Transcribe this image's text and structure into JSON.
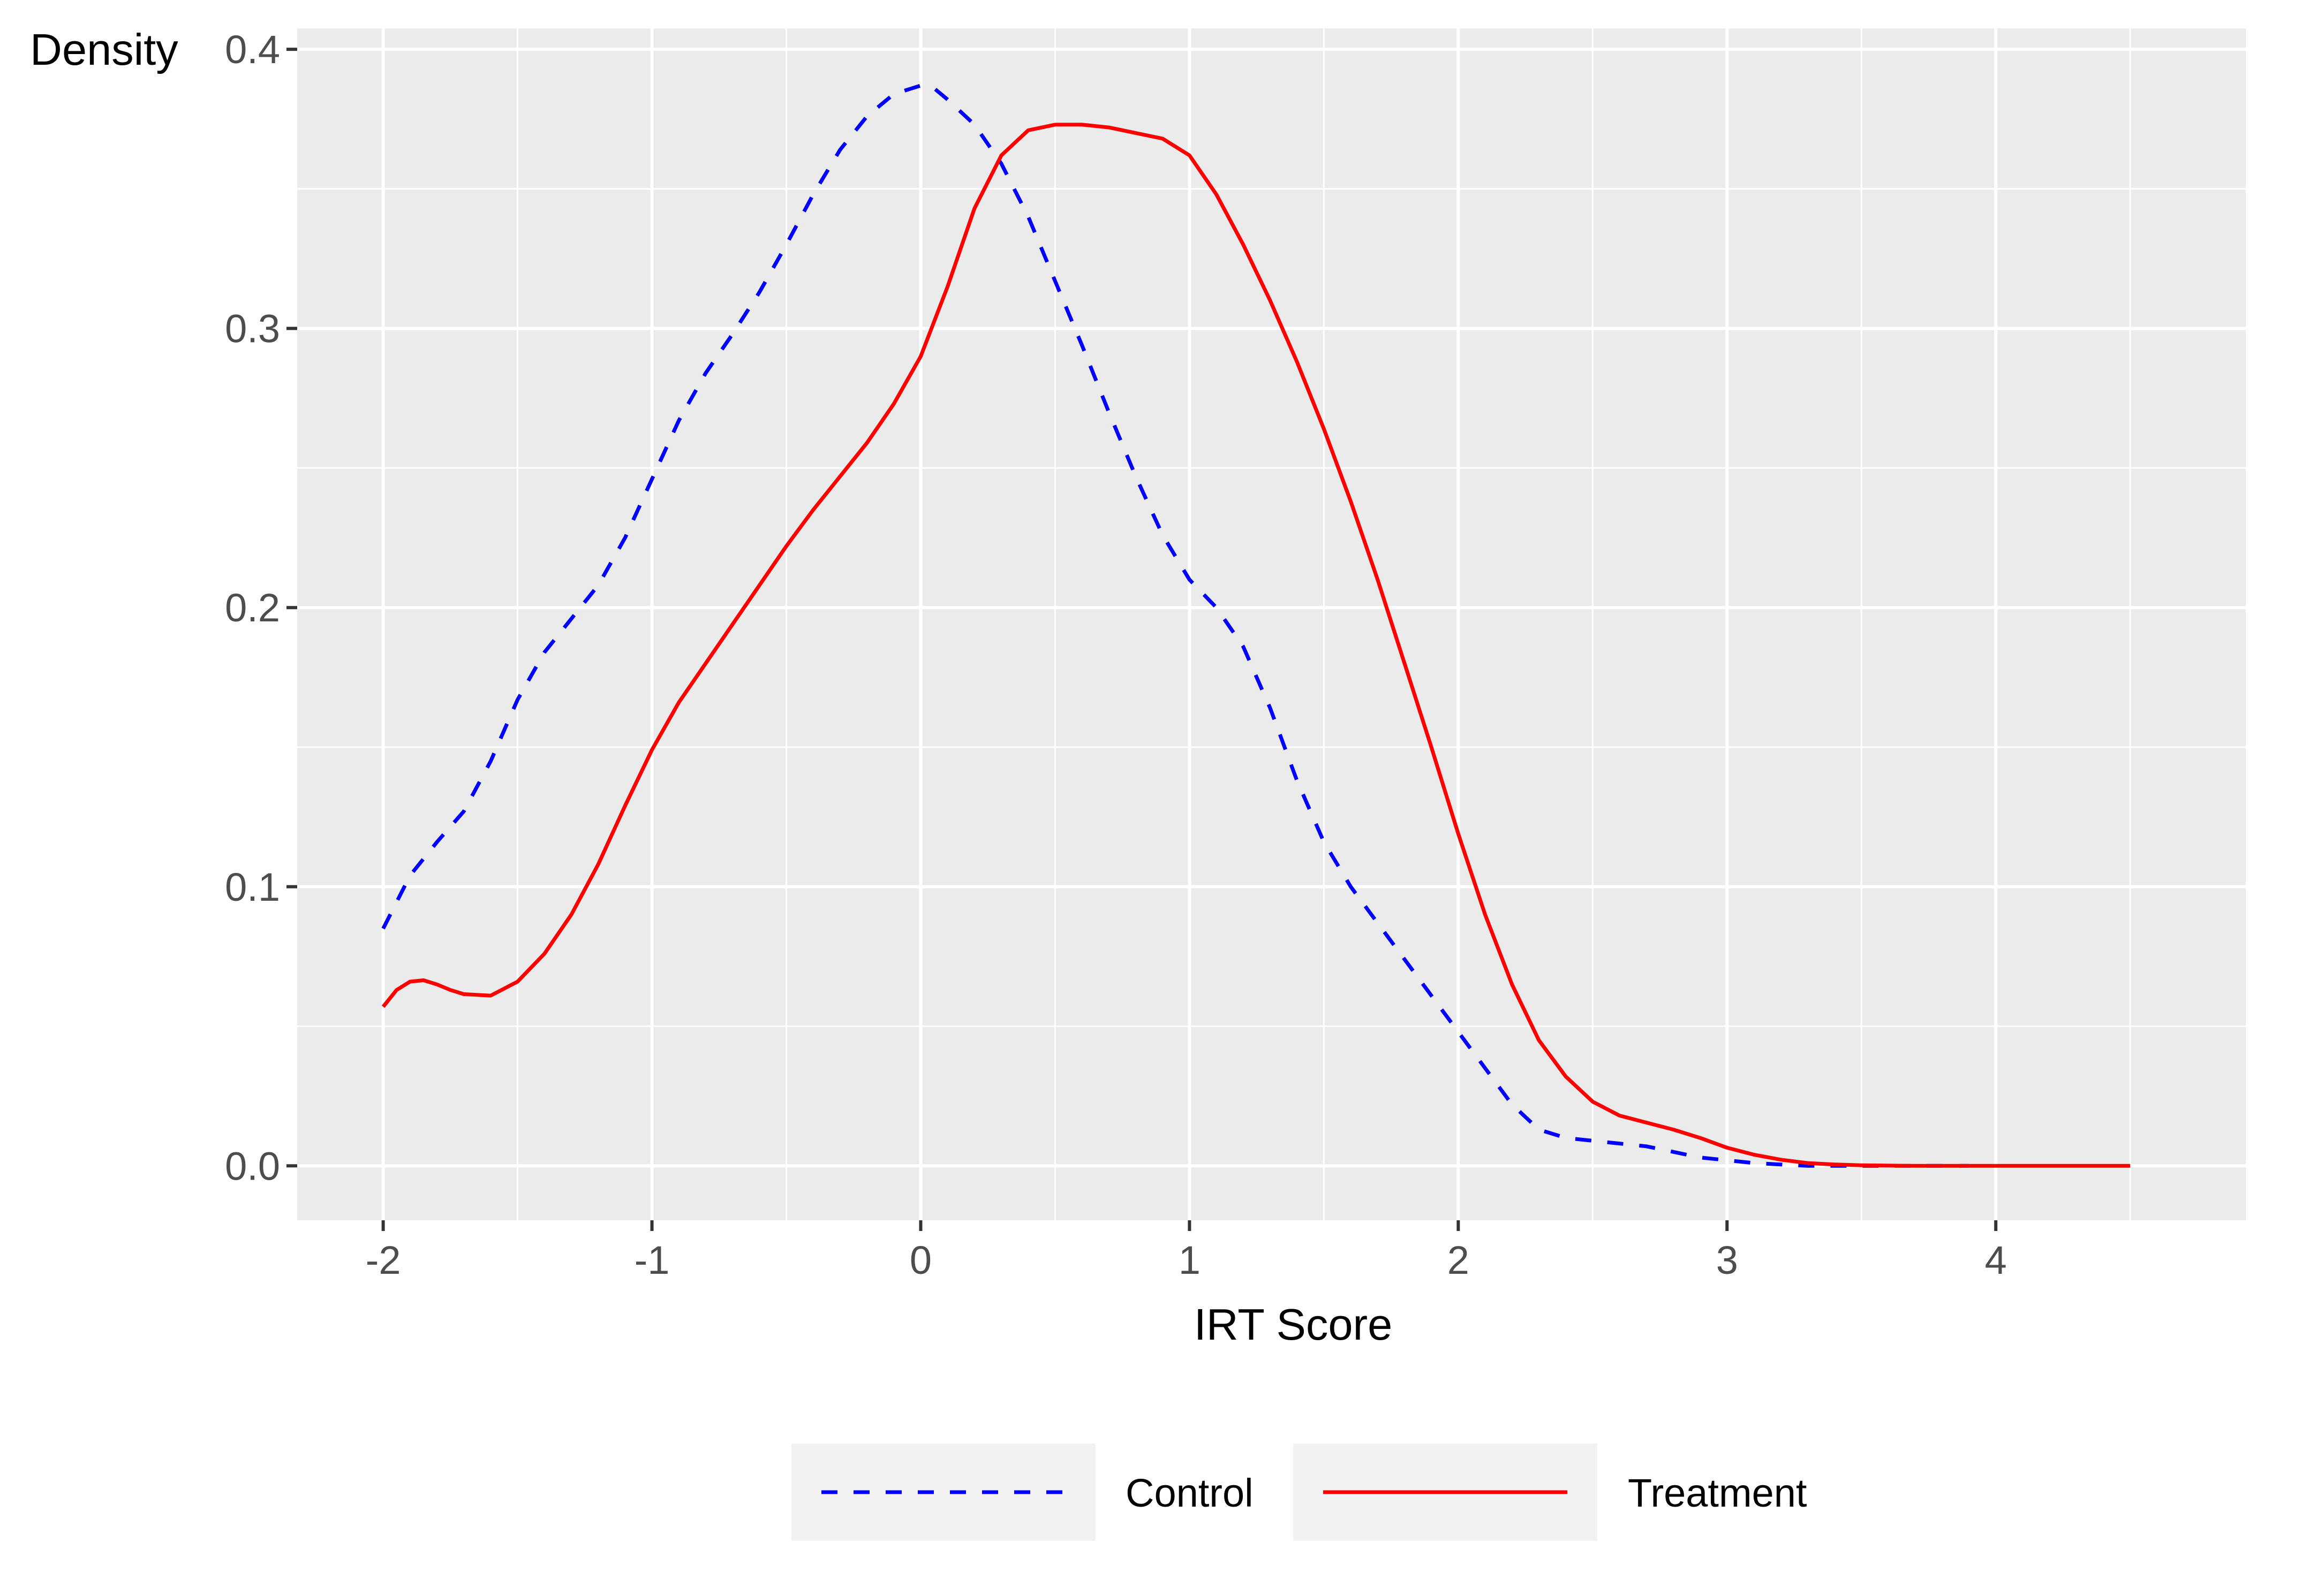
{
  "chart_data": {
    "type": "line",
    "title": "",
    "xlabel": "IRT Score",
    "ylabel": "Density",
    "xlim": [
      -2.32,
      4.93
    ],
    "ylim": [
      -0.0195,
      0.4075
    ],
    "x_ticks": [
      -2,
      -1,
      0,
      1,
      2,
      3,
      4
    ],
    "x_tick_labels": [
      "-2",
      "-1",
      "0",
      "1",
      "2",
      "3",
      "4"
    ],
    "y_ticks": [
      0.0,
      0.1,
      0.2,
      0.3,
      0.4
    ],
    "y_tick_labels": [
      "0.0",
      "0.1",
      "0.2",
      "0.3",
      "0.4"
    ],
    "grid": true,
    "legend_position": "bottom",
    "series": [
      {
        "name": "Control",
        "color": "#0000ff",
        "line_style": "dashed",
        "x": [
          -2.0,
          -1.9,
          -1.8,
          -1.7,
          -1.6,
          -1.5,
          -1.4,
          -1.3,
          -1.2,
          -1.1,
          -1.0,
          -0.9,
          -0.8,
          -0.7,
          -0.6,
          -0.5,
          -0.4,
          -0.3,
          -0.2,
          -0.1,
          0.0,
          0.05,
          0.1,
          0.2,
          0.3,
          0.4,
          0.5,
          0.6,
          0.7,
          0.8,
          0.9,
          1.0,
          1.1,
          1.2,
          1.3,
          1.4,
          1.5,
          1.6,
          1.7,
          1.8,
          1.9,
          2.0,
          2.1,
          2.2,
          2.3,
          2.4,
          2.5,
          2.6,
          2.7,
          2.8,
          2.9,
          3.0,
          3.1,
          3.2,
          3.3,
          3.4,
          3.5,
          3.6,
          3.7,
          3.8,
          3.9
        ],
        "y": [
          0.085,
          0.104,
          0.116,
          0.127,
          0.145,
          0.167,
          0.184,
          0.196,
          0.208,
          0.225,
          0.246,
          0.267,
          0.284,
          0.298,
          0.313,
          0.33,
          0.348,
          0.364,
          0.376,
          0.384,
          0.387,
          0.386,
          0.382,
          0.373,
          0.359,
          0.34,
          0.317,
          0.294,
          0.27,
          0.247,
          0.226,
          0.21,
          0.2,
          0.186,
          0.164,
          0.138,
          0.116,
          0.1,
          0.087,
          0.074,
          0.061,
          0.048,
          0.035,
          0.022,
          0.013,
          0.01,
          0.009,
          0.008,
          0.007,
          0.005,
          0.003,
          0.002,
          0.001,
          0.0005,
          0.0,
          0.0,
          0.0,
          0.0,
          0.0,
          0.0,
          0.0
        ]
      },
      {
        "name": "Treatment",
        "color": "#ff0000",
        "line_style": "solid",
        "x": [
          -2.0,
          -1.95,
          -1.9,
          -1.85,
          -1.8,
          -1.75,
          -1.7,
          -1.6,
          -1.5,
          -1.4,
          -1.3,
          -1.2,
          -1.1,
          -1.0,
          -0.9,
          -0.8,
          -0.7,
          -0.6,
          -0.5,
          -0.4,
          -0.3,
          -0.2,
          -0.1,
          0.0,
          0.1,
          0.2,
          0.3,
          0.4,
          0.5,
          0.6,
          0.7,
          0.8,
          0.9,
          1.0,
          1.1,
          1.2,
          1.3,
          1.4,
          1.5,
          1.6,
          1.7,
          1.8,
          1.9,
          2.0,
          2.1,
          2.2,
          2.3,
          2.4,
          2.5,
          2.6,
          2.7,
          2.8,
          2.9,
          3.0,
          3.1,
          3.2,
          3.3,
          3.4,
          3.5,
          3.6,
          3.7,
          3.8,
          3.9,
          4.0,
          4.2,
          4.5
        ],
        "y": [
          0.057,
          0.063,
          0.066,
          0.0665,
          0.065,
          0.063,
          0.0615,
          0.061,
          0.066,
          0.076,
          0.09,
          0.108,
          0.129,
          0.149,
          0.166,
          0.18,
          0.194,
          0.208,
          0.222,
          0.235,
          0.247,
          0.259,
          0.273,
          0.29,
          0.315,
          0.343,
          0.362,
          0.371,
          0.373,
          0.373,
          0.372,
          0.37,
          0.368,
          0.362,
          0.348,
          0.33,
          0.31,
          0.288,
          0.264,
          0.238,
          0.21,
          0.18,
          0.15,
          0.119,
          0.09,
          0.065,
          0.045,
          0.032,
          0.023,
          0.018,
          0.0155,
          0.013,
          0.01,
          0.0065,
          0.004,
          0.0022,
          0.001,
          0.0005,
          0.0002,
          0.0001,
          0.0,
          0.0,
          0.0,
          0.0,
          0.0,
          0.0
        ]
      }
    ]
  }
}
